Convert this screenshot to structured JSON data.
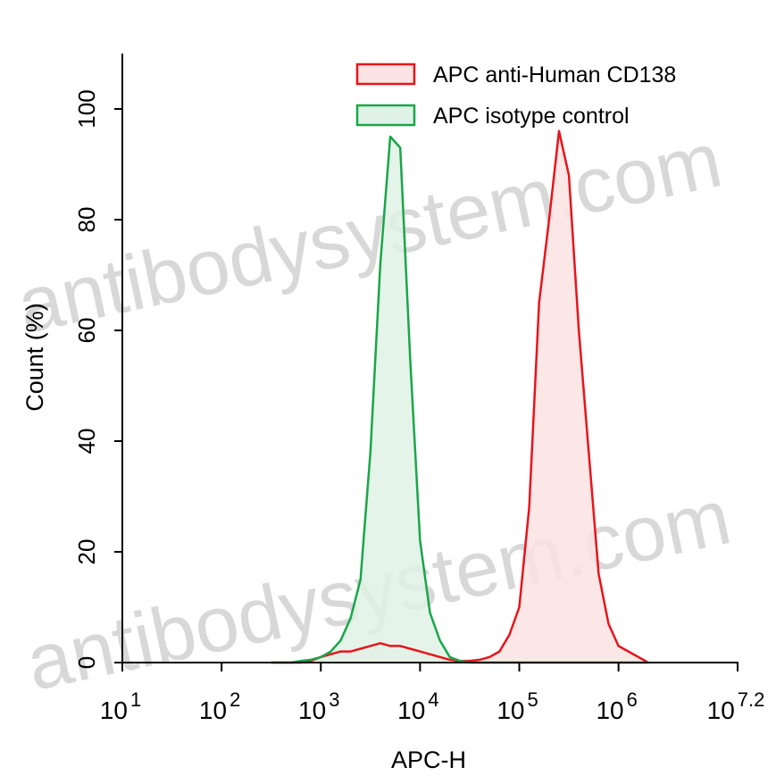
{
  "chart_data": {
    "type": "line",
    "watermark": "antibodysystem.com",
    "xlabel": "APC-H",
    "ylabel": "Count  (%)",
    "log_x": true,
    "filled": true,
    "legend": "top-right",
    "xlim": [
      10,
      15848932
    ],
    "ylim": [
      0,
      110
    ],
    "xticks": [
      {
        "value": 10,
        "label": "10",
        "exponent": "1"
      },
      {
        "value": 100,
        "label": "10",
        "exponent": "2"
      },
      {
        "value": 1000,
        "label": "10",
        "exponent": "3"
      },
      {
        "value": 10000,
        "label": "10",
        "exponent": "4"
      },
      {
        "value": 100000,
        "label": "10",
        "exponent": "5"
      },
      {
        "value": 1000000,
        "label": "10",
        "exponent": "6"
      },
      {
        "value": 15848932,
        "label": "10",
        "exponent": "7.2"
      }
    ],
    "yticks": [
      0,
      20,
      40,
      60,
      80,
      100
    ],
    "x": [
      316,
      398,
      501,
      631,
      794,
      1000,
      1259,
      1585,
      1995,
      2512,
      3162,
      3981,
      5012,
      6310,
      7943,
      10000,
      12589,
      15849,
      19953,
      25119,
      31623,
      39811,
      50119,
      63096,
      79433,
      100000,
      125893,
      158489,
      199526,
      251189,
      316228,
      398107,
      501187,
      630957,
      794328,
      1000000,
      1258925,
      1584893,
      1995262
    ],
    "series": [
      {
        "name": "APC anti-Human CD138",
        "color": "#e8141c",
        "fill": "#fbe3e3",
        "values": [
          0,
          0,
          0,
          0,
          0.3,
          1,
          1.5,
          2,
          2,
          2.5,
          3,
          3.5,
          3,
          3,
          2.5,
          2,
          1.5,
          1,
          0.5,
          0.3,
          0.3,
          0.5,
          1,
          2,
          5,
          10,
          28,
          65,
          80,
          96,
          88,
          60,
          38,
          16,
          7,
          3,
          2,
          1,
          0
        ]
      },
      {
        "name": "APC isotype control",
        "color": "#1aa64a",
        "fill": "#dff2e5",
        "values": [
          0,
          0,
          0,
          0.3,
          0.5,
          1,
          2,
          4,
          8,
          15,
          38,
          72,
          95,
          93,
          55,
          22,
          9,
          4,
          1,
          0.3,
          0,
          0,
          0,
          0,
          0,
          0,
          0,
          0,
          0,
          0,
          0,
          0,
          0,
          0,
          0,
          0,
          0,
          0,
          0
        ]
      }
    ]
  }
}
